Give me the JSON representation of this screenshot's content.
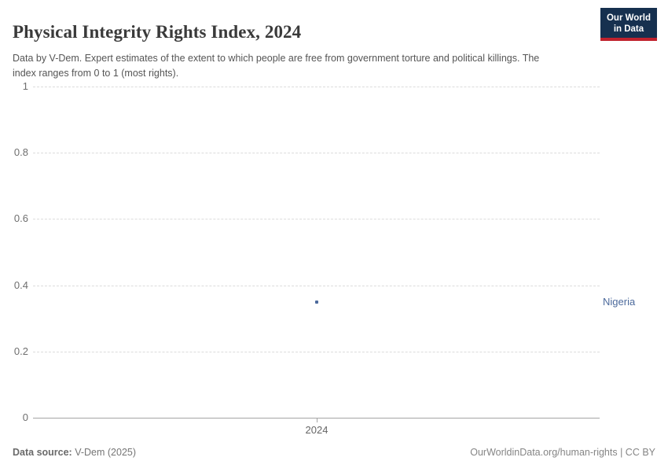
{
  "header": {
    "title": "Physical Integrity Rights Index, 2024",
    "subtitle": "Data by V-Dem. Expert estimates of the extent to which people are free from government torture and political killings. The index ranges from 0 to 1 (most rights).",
    "logo": {
      "line1": "Our World",
      "line2": "in Data",
      "background_color": "#16304f",
      "accent_color": "#c0222d"
    }
  },
  "chart_data": {
    "type": "scatter",
    "title": "Physical Integrity Rights Index, 2024",
    "x": [
      "2024"
    ],
    "series": [
      {
        "name": "Nigeria",
        "values": [
          0.35
        ],
        "color": "#4C6A9C"
      }
    ],
    "xlabel": "",
    "ylabel": "",
    "ylim": [
      0,
      1
    ],
    "yticks": [
      0,
      0.2,
      0.4,
      0.6,
      0.8,
      1
    ],
    "xticks": [
      "2024"
    ],
    "grid": "horizontal-dashed",
    "marker": "square",
    "legend_position": "entity-label-right-of-plot"
  },
  "footer": {
    "source_label": "Data source:",
    "source_value": " V-Dem (2025)",
    "credit": "OurWorldinData.org/human-rights | CC BY"
  },
  "colors": {
    "title_text": "#3a3a3a",
    "subtitle_text": "#555555",
    "axis_labels": "#6f6f6f",
    "gridline": "#dcdcdc",
    "axis_line": "#a5a5a5",
    "series_nigeria": "#4C6A9C"
  }
}
